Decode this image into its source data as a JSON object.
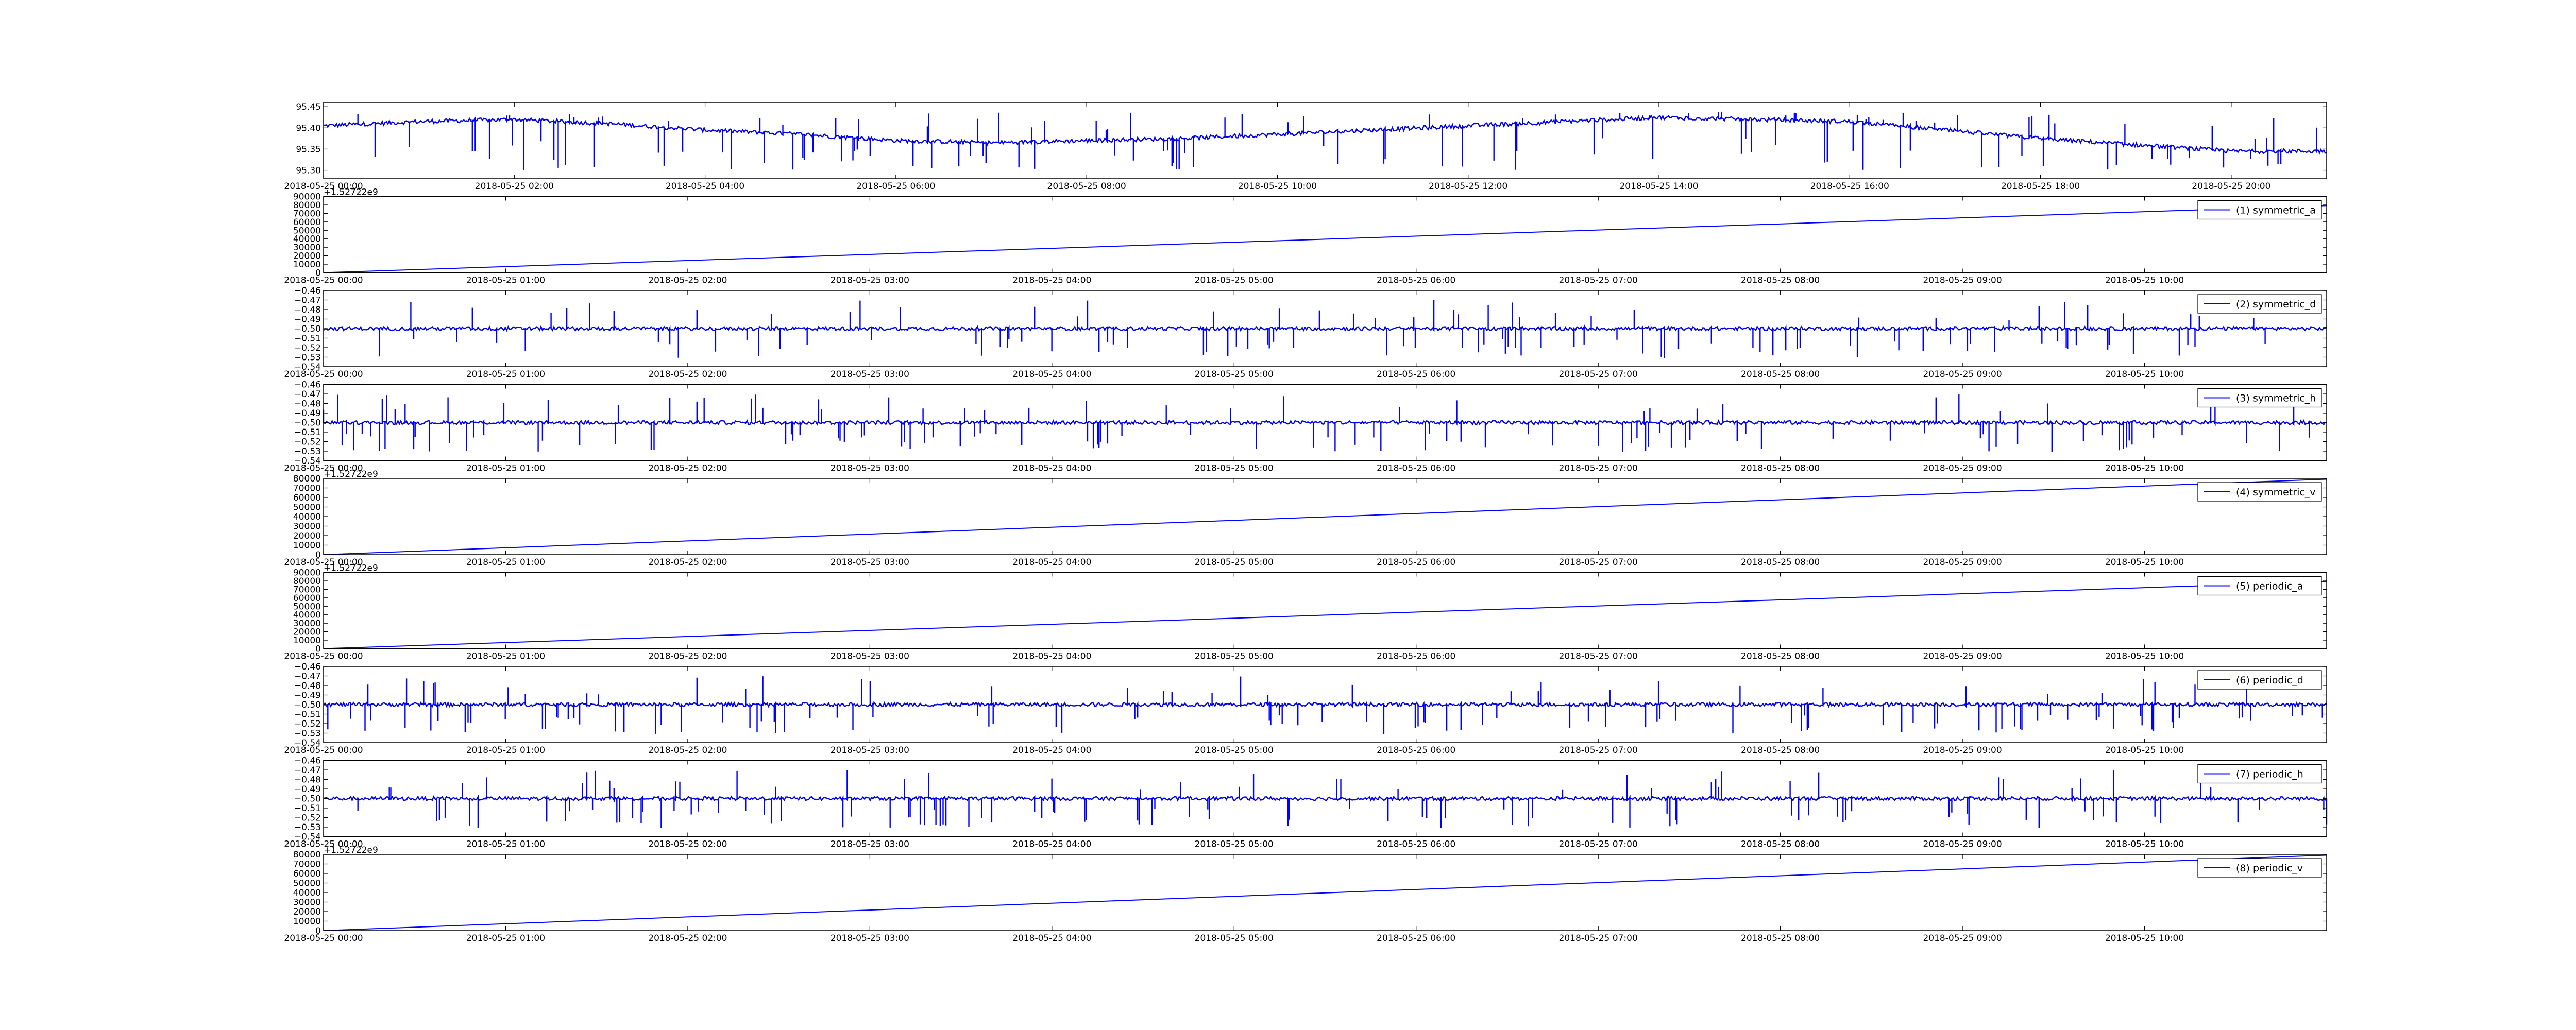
{
  "colors": {
    "series": "#0000ff",
    "axis": "#000000",
    "background": "#ffffff"
  },
  "chart_data": [
    {
      "type": "line",
      "title": "",
      "xlabel": "",
      "ylabel": "",
      "x_range": [
        "2018-05-25 00:00",
        "2018-05-25 21:00"
      ],
      "xticks": [
        "2018-05-25 00:00",
        "2018-05-25 02:00",
        "2018-05-25 04:00",
        "2018-05-25 06:00",
        "2018-05-25 08:00",
        "2018-05-25 10:00",
        "2018-05-25 12:00",
        "2018-05-25 14:00",
        "2018-05-25 16:00",
        "2018-05-25 18:00",
        "2018-05-25 20:00"
      ],
      "ylim": [
        95.28,
        95.46
      ],
      "yticks": [
        "95.30",
        "95.35",
        "95.40",
        "95.45"
      ],
      "offset_text": "",
      "legend": "",
      "grid": false,
      "series": [
        {
          "style": "noisy",
          "baseline": [
            [
              "2018-05-25 00:00",
              95.405
            ],
            [
              "2018-05-25 01:00",
              95.415
            ],
            [
              "2018-05-25 02:00",
              95.42
            ],
            [
              "2018-05-25 03:00",
              95.41
            ],
            [
              "2018-05-25 04:00",
              95.395
            ],
            [
              "2018-05-25 05:00",
              95.385
            ],
            [
              "2018-05-25 06:00",
              95.37
            ],
            [
              "2018-05-25 07:00",
              95.365
            ],
            [
              "2018-05-25 08:00",
              95.37
            ],
            [
              "2018-05-25 09:00",
              95.375
            ],
            [
              "2018-05-25 10:00",
              95.385
            ],
            [
              "2018-05-25 11:00",
              95.395
            ],
            [
              "2018-05-25 12:00",
              95.405
            ],
            [
              "2018-05-25 13:00",
              95.415
            ],
            [
              "2018-05-25 14:00",
              95.425
            ],
            [
              "2018-05-25 15:00",
              95.42
            ],
            [
              "2018-05-25 16:00",
              95.415
            ],
            [
              "2018-05-25 17:00",
              95.395
            ],
            [
              "2018-05-25 18:00",
              95.375
            ],
            [
              "2018-05-25 19:00",
              95.36
            ],
            [
              "2018-05-25 20:00",
              95.345
            ],
            [
              "2018-05-25 21:00",
              95.345
            ]
          ],
          "noise": 0.005,
          "spike_low": 95.3,
          "spike_high": 95.44
        }
      ]
    },
    {
      "type": "line",
      "title": "",
      "xlabel": "",
      "ylabel": "",
      "x_range": [
        "2018-05-25 00:00",
        "2018-05-25 11:00"
      ],
      "xticks": [
        "2018-05-25 00:00",
        "2018-05-25 01:00",
        "2018-05-25 02:00",
        "2018-05-25 03:00",
        "2018-05-25 04:00",
        "2018-05-25 05:00",
        "2018-05-25 06:00",
        "2018-05-25 07:00",
        "2018-05-25 08:00",
        "2018-05-25 09:00",
        "2018-05-25 10:00"
      ],
      "ylim": [
        0,
        90000
      ],
      "yticks": [
        "0",
        "10000",
        "20000",
        "30000",
        "40000",
        "50000",
        "60000",
        "70000",
        "80000",
        "90000"
      ],
      "offset_text": "+1.52722e9",
      "legend": "(1) symmetric_a",
      "grid": false,
      "series": [
        {
          "name": "(1) symmetric_a",
          "style": "linear",
          "x": [
            "2018-05-25 00:00",
            "2018-05-25 11:00"
          ],
          "y": [
            0,
            79200
          ]
        }
      ]
    },
    {
      "type": "line",
      "title": "",
      "xlabel": "",
      "ylabel": "",
      "x_range": [
        "2018-05-25 00:00",
        "2018-05-25 11:00"
      ],
      "xticks": [
        "2018-05-25 00:00",
        "2018-05-25 01:00",
        "2018-05-25 02:00",
        "2018-05-25 03:00",
        "2018-05-25 04:00",
        "2018-05-25 05:00",
        "2018-05-25 06:00",
        "2018-05-25 07:00",
        "2018-05-25 08:00",
        "2018-05-25 09:00",
        "2018-05-25 10:00"
      ],
      "ylim": [
        -0.54,
        -0.46
      ],
      "yticks": [
        "−0.54",
        "−0.53",
        "−0.52",
        "−0.51",
        "−0.50",
        "−0.49",
        "−0.48",
        "−0.47",
        "−0.46"
      ],
      "offset_text": "",
      "legend": "(2) symmetric_d",
      "grid": false,
      "series": [
        {
          "name": "(2) symmetric_d",
          "style": "noisy",
          "baseline": [
            [
              "2018-05-25 00:00",
              -0.5
            ],
            [
              "2018-05-25 11:00",
              -0.5
            ]
          ],
          "noise": 0.002,
          "spike_low": -0.531,
          "spike_high": -0.47
        }
      ]
    },
    {
      "type": "line",
      "title": "",
      "xlabel": "",
      "ylabel": "",
      "x_range": [
        "2018-05-25 00:00",
        "2018-05-25 11:00"
      ],
      "xticks": [
        "2018-05-25 00:00",
        "2018-05-25 01:00",
        "2018-05-25 02:00",
        "2018-05-25 03:00",
        "2018-05-25 04:00",
        "2018-05-25 05:00",
        "2018-05-25 06:00",
        "2018-05-25 07:00",
        "2018-05-25 08:00",
        "2018-05-25 09:00",
        "2018-05-25 10:00"
      ],
      "ylim": [
        -0.54,
        -0.46
      ],
      "yticks": [
        "−0.54",
        "−0.53",
        "−0.52",
        "−0.51",
        "−0.50",
        "−0.49",
        "−0.48",
        "−0.47",
        "−0.46"
      ],
      "offset_text": "",
      "legend": "(3) symmetric_h",
      "grid": false,
      "series": [
        {
          "name": "(3) symmetric_h",
          "style": "noisy",
          "baseline": [
            [
              "2018-05-25 00:00",
              -0.5
            ],
            [
              "2018-05-25 11:00",
              -0.5
            ]
          ],
          "noise": 0.002,
          "spike_low": -0.531,
          "spike_high": -0.47
        }
      ]
    },
    {
      "type": "line",
      "title": "",
      "xlabel": "",
      "ylabel": "",
      "x_range": [
        "2018-05-25 00:00",
        "2018-05-25 11:00"
      ],
      "xticks": [
        "2018-05-25 00:00",
        "2018-05-25 01:00",
        "2018-05-25 02:00",
        "2018-05-25 03:00",
        "2018-05-25 04:00",
        "2018-05-25 05:00",
        "2018-05-25 06:00",
        "2018-05-25 07:00",
        "2018-05-25 08:00",
        "2018-05-25 09:00",
        "2018-05-25 10:00"
      ],
      "ylim": [
        0,
        80000
      ],
      "yticks": [
        "0",
        "10000",
        "20000",
        "30000",
        "40000",
        "50000",
        "60000",
        "70000",
        "80000"
      ],
      "offset_text": "+1.52722e9",
      "legend": "(4) symmetric_v",
      "grid": false,
      "series": [
        {
          "name": "(4) symmetric_v",
          "style": "linear",
          "x": [
            "2018-05-25 00:00",
            "2018-05-25 11:00"
          ],
          "y": [
            0,
            79200
          ]
        }
      ]
    },
    {
      "type": "line",
      "title": "",
      "xlabel": "",
      "ylabel": "",
      "x_range": [
        "2018-05-25 00:00",
        "2018-05-25 11:00"
      ],
      "xticks": [
        "2018-05-25 00:00",
        "2018-05-25 01:00",
        "2018-05-25 02:00",
        "2018-05-25 03:00",
        "2018-05-25 04:00",
        "2018-05-25 05:00",
        "2018-05-25 06:00",
        "2018-05-25 07:00",
        "2018-05-25 08:00",
        "2018-05-25 09:00",
        "2018-05-25 10:00"
      ],
      "ylim": [
        0,
        90000
      ],
      "yticks": [
        "0",
        "10000",
        "20000",
        "30000",
        "40000",
        "50000",
        "60000",
        "70000",
        "80000",
        "90000"
      ],
      "offset_text": "+1.52722e9",
      "legend": "(5) periodic_a",
      "grid": false,
      "series": [
        {
          "name": "(5) periodic_a",
          "style": "linear",
          "x": [
            "2018-05-25 00:00",
            "2018-05-25 11:00"
          ],
          "y": [
            0,
            79200
          ]
        }
      ]
    },
    {
      "type": "line",
      "title": "",
      "xlabel": "",
      "ylabel": "",
      "x_range": [
        "2018-05-25 00:00",
        "2018-05-25 11:00"
      ],
      "xticks": [
        "2018-05-25 00:00",
        "2018-05-25 01:00",
        "2018-05-25 02:00",
        "2018-05-25 03:00",
        "2018-05-25 04:00",
        "2018-05-25 05:00",
        "2018-05-25 06:00",
        "2018-05-25 07:00",
        "2018-05-25 08:00",
        "2018-05-25 09:00",
        "2018-05-25 10:00"
      ],
      "ylim": [
        -0.54,
        -0.46
      ],
      "yticks": [
        "−0.54",
        "−0.53",
        "−0.52",
        "−0.51",
        "−0.50",
        "−0.49",
        "−0.48",
        "−0.47",
        "−0.46"
      ],
      "offset_text": "",
      "legend": "(6) periodic_d",
      "grid": false,
      "series": [
        {
          "name": "(6) periodic_d",
          "style": "noisy",
          "baseline": [
            [
              "2018-05-25 00:00",
              -0.5
            ],
            [
              "2018-05-25 11:00",
              -0.5
            ]
          ],
          "noise": 0.002,
          "spike_low": -0.531,
          "spike_high": -0.47
        }
      ]
    },
    {
      "type": "line",
      "title": "",
      "xlabel": "",
      "ylabel": "",
      "x_range": [
        "2018-05-25 00:00",
        "2018-05-25 11:00"
      ],
      "xticks": [
        "2018-05-25 00:00",
        "2018-05-25 01:00",
        "2018-05-25 02:00",
        "2018-05-25 03:00",
        "2018-05-25 04:00",
        "2018-05-25 05:00",
        "2018-05-25 06:00",
        "2018-05-25 07:00",
        "2018-05-25 08:00",
        "2018-05-25 09:00",
        "2018-05-25 10:00"
      ],
      "ylim": [
        -0.54,
        -0.46
      ],
      "yticks": [
        "−0.54",
        "−0.53",
        "−0.52",
        "−0.51",
        "−0.50",
        "−0.49",
        "−0.48",
        "−0.47",
        "−0.46"
      ],
      "offset_text": "",
      "legend": "(7) periodic_h",
      "grid": false,
      "series": [
        {
          "name": "(7) periodic_h",
          "style": "noisy",
          "baseline": [
            [
              "2018-05-25 00:00",
              -0.5
            ],
            [
              "2018-05-25 11:00",
              -0.5
            ]
          ],
          "noise": 0.002,
          "spike_low": -0.531,
          "spike_high": -0.47
        }
      ]
    },
    {
      "type": "line",
      "title": "",
      "xlabel": "",
      "ylabel": "",
      "x_range": [
        "2018-05-25 00:00",
        "2018-05-25 11:00"
      ],
      "xticks": [
        "2018-05-25 00:00",
        "2018-05-25 01:00",
        "2018-05-25 02:00",
        "2018-05-25 03:00",
        "2018-05-25 04:00",
        "2018-05-25 05:00",
        "2018-05-25 06:00",
        "2018-05-25 07:00",
        "2018-05-25 08:00",
        "2018-05-25 09:00",
        "2018-05-25 10:00"
      ],
      "ylim": [
        0,
        80000
      ],
      "yticks": [
        "0",
        "10000",
        "20000",
        "30000",
        "40000",
        "50000",
        "60000",
        "70000",
        "80000"
      ],
      "offset_text": "+1.52722e9",
      "legend": "(8) periodic_v",
      "grid": false,
      "series": [
        {
          "name": "(8) periodic_v",
          "style": "linear",
          "x": [
            "2018-05-25 00:00",
            "2018-05-25 11:00"
          ],
          "y": [
            0,
            79200
          ]
        }
      ]
    }
  ]
}
